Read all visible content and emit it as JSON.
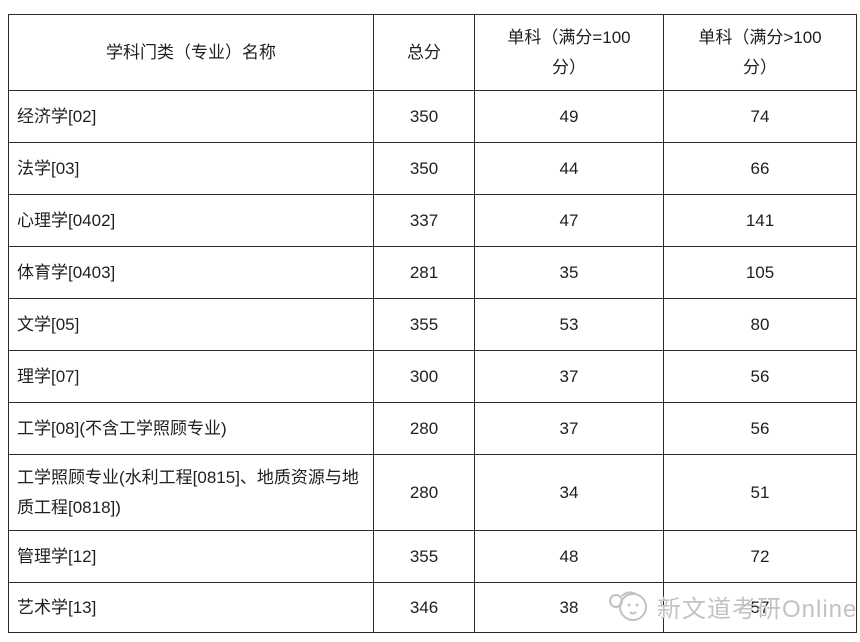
{
  "table": {
    "headers": [
      "学科门类（专业）名称",
      "总分",
      "单科（满分=100\n分）",
      "单科（满分>100\n分）"
    ],
    "rows": [
      {
        "name": "经济学[02]",
        "total": "350",
        "sub100": "49",
        "subGt100": "74"
      },
      {
        "name": "法学[03]",
        "total": "350",
        "sub100": "44",
        "subGt100": "66"
      },
      {
        "name": "心理学[0402]",
        "total": "337",
        "sub100": "47",
        "subGt100": "141"
      },
      {
        "name": "体育学[0403]",
        "total": "281",
        "sub100": "35",
        "subGt100": "105"
      },
      {
        "name": "文学[05]",
        "total": "355",
        "sub100": "53",
        "subGt100": "80"
      },
      {
        "name": "理学[07]",
        "total": "300",
        "sub100": "37",
        "subGt100": "56"
      },
      {
        "name": "工学[08](不含工学照顾专业)",
        "total": "280",
        "sub100": "37",
        "subGt100": "56"
      },
      {
        "name": "工学照顾专业(水利工程[0815]、地质资源与地质工程[0818])",
        "total": "280",
        "sub100": "34",
        "subGt100": "51"
      },
      {
        "name": "管理学[12]",
        "total": "355",
        "sub100": "48",
        "subGt100": "72"
      },
      {
        "name": "艺术学[13]",
        "total": "346",
        "sub100": "38",
        "subGt100": "57"
      }
    ]
  },
  "watermark": {
    "text": "新文道考研Online",
    "logo": "mascot-face-icon",
    "color": "#c2c2c2"
  },
  "colors": {
    "border": "#2a2a2a",
    "text": "#1f1f1f",
    "background": "#ffffff"
  }
}
